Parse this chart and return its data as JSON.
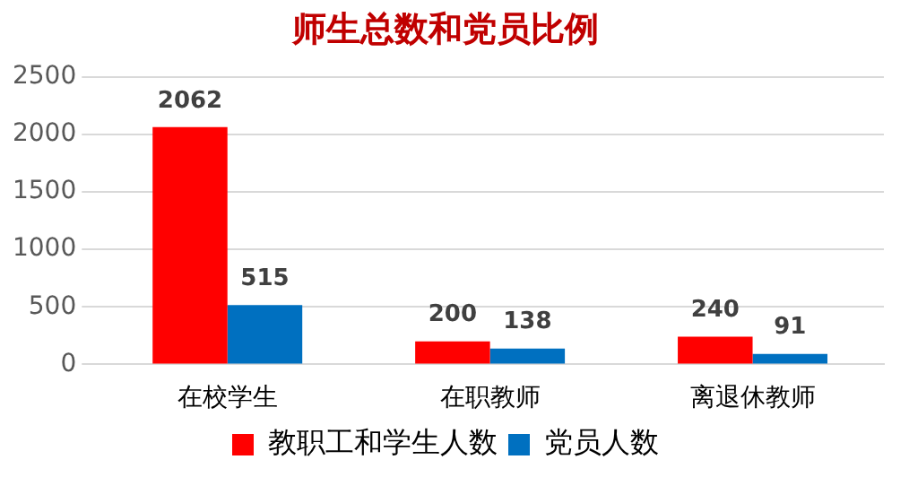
{
  "chart_data": {
    "type": "bar",
    "title": "师生总数和党员比例",
    "categories": [
      "在校学生",
      "在职教师",
      "离退休教师"
    ],
    "series": [
      {
        "name": "教职工和学生人数",
        "color": "#ff0000",
        "values": [
          2062,
          200,
          240
        ]
      },
      {
        "name": "党员人数",
        "color": "#0070c0",
        "values": [
          515,
          138,
          91
        ]
      }
    ],
    "ylim": [
      0,
      2500
    ],
    "yticks": [
      0,
      500,
      1000,
      1500,
      2000,
      2500
    ],
    "grid": "y",
    "legend": "bottom",
    "data_labels": true
  }
}
